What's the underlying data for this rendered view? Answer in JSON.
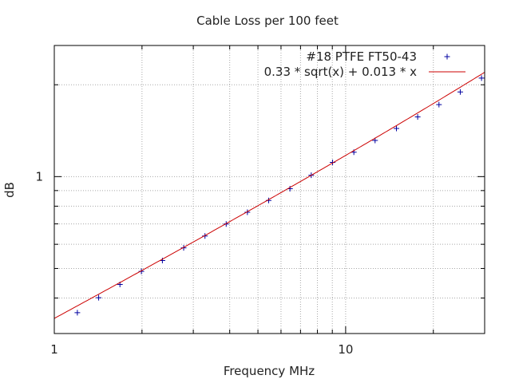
{
  "chart_data": {
    "type": "scatter",
    "title": "Cable Loss per 100 feet",
    "xlabel": "Frequency MHz",
    "ylabel": "dB",
    "x_scale": "log",
    "y_scale": "log",
    "xlim": [
      1,
      30
    ],
    "ylim": [
      0.306,
      2.69
    ],
    "x_ticks": [
      {
        "value": 1,
        "label": "1"
      },
      {
        "value": 10,
        "label": "10"
      }
    ],
    "y_ticks": [
      {
        "value": 1,
        "label": "1"
      }
    ],
    "grid": true,
    "legend_position": "top-right",
    "series": [
      {
        "name": "#18 PTFE FT50-43",
        "kind": "points",
        "marker": "plus",
        "color": "#0000a0",
        "x": [
          1.2,
          1.42,
          1.68,
          1.99,
          2.35,
          2.78,
          3.29,
          3.89,
          4.6,
          5.44,
          6.44,
          7.62,
          9.02,
          10.67,
          12.62,
          14.94,
          17.67,
          20.91,
          24.74,
          29.27
        ],
        "y": [
          0.358,
          0.401,
          0.443,
          0.489,
          0.531,
          0.584,
          0.639,
          0.699,
          0.764,
          0.835,
          0.913,
          1.01,
          1.113,
          1.202,
          1.314,
          1.438,
          1.569,
          1.722,
          1.894,
          2.103
        ]
      },
      {
        "name": "0.33 * sqrt(x) + 0.013 * x",
        "kind": "line",
        "color": "#cc0000",
        "formula": {
          "a": 0.33,
          "b": 0.013
        }
      }
    ]
  }
}
